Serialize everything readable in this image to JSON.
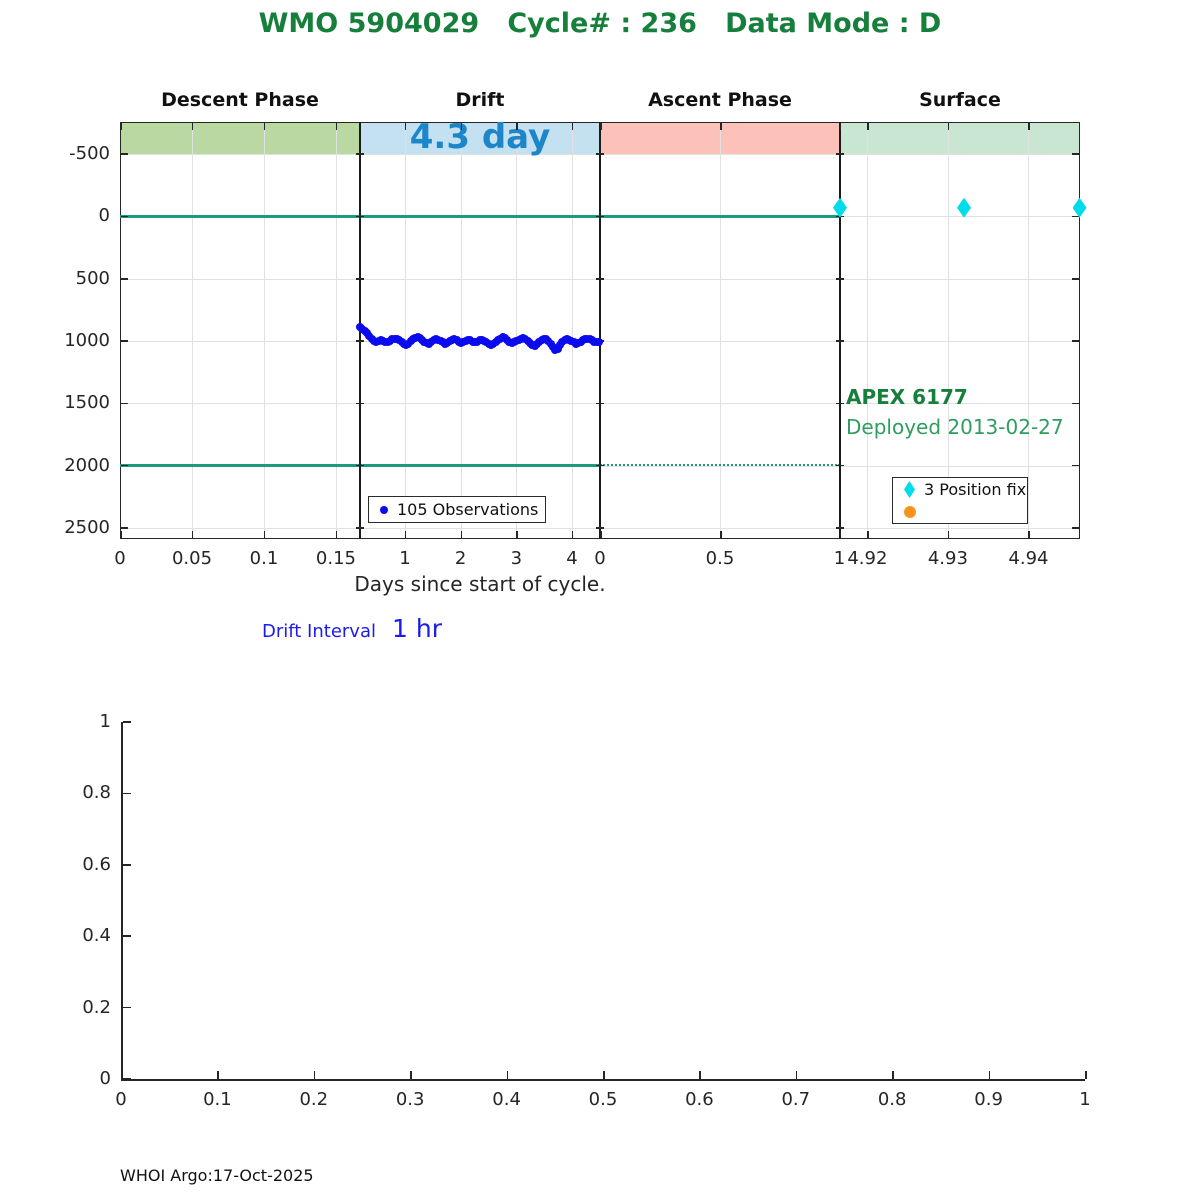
{
  "page": {
    "footer": "WHOI Argo:17-Oct-2025"
  },
  "colors": {
    "title_green": "#157f3b",
    "deployed_green": "#2e9e5f",
    "line_green": "#1e9b7d",
    "observation_blue": "#0b0bee",
    "position_fix_cyan": "#00dcea",
    "legend_orange": "#f79420",
    "drift_duration_blue": "#1d86c8",
    "interval_blue": "#1b1bee",
    "band_descent": "#b9d8a2",
    "band_drift": "#c3e1f0",
    "band_ascent": "#fcc1b8",
    "band_surface": "#c9e6d2"
  },
  "chart_data": [
    {
      "type": "scatter",
      "title": "WMO 5904029   Cycle# : 236   Data Mode : D",
      "xlabel": "Days since start of cycle.",
      "ydir": "reverse",
      "ylim": [
        -758,
        2588
      ],
      "yticks": [
        -500,
        0,
        500,
        1000,
        1500,
        2000,
        2500
      ],
      "grid": true,
      "segments": [
        {
          "name": "Descent Phase",
          "band_color": "#b9d8a2",
          "day_range": [
            0,
            0.1667
          ],
          "ticks": [
            {
              "label": "0",
              "day": 0
            },
            {
              "label": "0.05",
              "day": 0.05
            },
            {
              "label": "0.1",
              "day": 0.1
            },
            {
              "label": "0.15",
              "day": 0.15
            }
          ]
        },
        {
          "name": "Drift",
          "band_color": "#c3e1f0",
          "band_label": "4.3 day",
          "day_range": [
            0.1915,
            4.504
          ],
          "ticks": [
            {
              "label": "1",
              "day": 1
            },
            {
              "label": "2",
              "day": 2
            },
            {
              "label": "3",
              "day": 3
            },
            {
              "label": "4",
              "day": 4
            }
          ]
        },
        {
          "name": "Ascent Phase",
          "band_color": "#fcc1b8",
          "day_range": [
            0,
            1
          ],
          "ticks": [
            {
              "label": "0",
              "day": 0
            },
            {
              "label": "0.5",
              "day": 0.5
            },
            {
              "label": "1",
              "day": 1
            }
          ]
        },
        {
          "name": "Surface",
          "band_color": "#c9e6d2",
          "day_range": [
            4.9166,
            4.9464
          ],
          "ticks": [
            {
              "label": "4.92",
              "day": 4.92
            },
            {
              "label": "4.93",
              "day": 4.93
            },
            {
              "label": "4.94",
              "day": 4.94
            }
          ]
        }
      ],
      "hlines": [
        {
          "depth": 0,
          "frac": [
            0,
            0.75
          ],
          "style": "solid"
        },
        {
          "depth": 2000,
          "frac": [
            0,
            0.5
          ],
          "style": "solid"
        },
        {
          "depth": 2000,
          "frac": [
            0.5,
            0.75
          ],
          "style": "dotted"
        }
      ],
      "series": [
        {
          "name": "105 Observations",
          "marker": "point",
          "color": "#0b0bee",
          "segment": 1,
          "x_start": 0.195,
          "x_step": 0.04125,
          "depths": [
            890,
            900,
            915,
            935,
            960,
            985,
            1000,
            1005,
            1000,
            995,
            1000,
            1005,
            1010,
            1000,
            985,
            980,
            985,
            995,
            1010,
            1025,
            1030,
            1020,
            1000,
            985,
            975,
            970,
            975,
            990,
            1005,
            1015,
            1020,
            1010,
            995,
            985,
            990,
            1000,
            1010,
            1020,
            1015,
            1000,
            990,
            985,
            995,
            1005,
            1015,
            1010,
            1000,
            990,
            995,
            1005,
            1010,
            1005,
            995,
            990,
            1000,
            1010,
            1020,
            1035,
            1025,
            1010,
            995,
            980,
            970,
            975,
            990,
            1005,
            1015,
            1010,
            1000,
            990,
            980,
            975,
            985,
            1000,
            1015,
            1030,
            1040,
            1025,
            1005,
            990,
            980,
            985,
            1000,
            1020,
            1045,
            1075,
            1060,
            1035,
            1010,
            995,
            985,
            990,
            1000,
            1010,
            1020,
            1015,
            1005,
            995,
            985,
            980,
            985,
            995,
            1005,
            1010,
            1005
          ]
        },
        {
          "name": "3 Position fix",
          "marker": "diamond",
          "color": "#00dcea",
          "segment": 3,
          "points": [
            {
              "day": 4.9166,
              "depth": -70
            },
            {
              "day": 4.932,
              "depth": -70
            },
            {
              "day": 4.9464,
              "depth": -70
            }
          ]
        }
      ],
      "annotations": {
        "float_id": "APEX 6177",
        "deployed": "Deployed 2013-02-27"
      },
      "legends": {
        "observations": {
          "label": "105 Observations"
        },
        "position_fix": {
          "items": [
            {
              "label": "3 Position fix",
              "marker": "diamond",
              "color": "#00dcea"
            },
            {
              "label": "",
              "marker": "circle",
              "color": "#f79420"
            }
          ]
        }
      },
      "drift_interval": {
        "label": "Drift Interval",
        "value": "1 hr"
      }
    },
    {
      "type": "empty",
      "xlim": [
        0,
        1
      ],
      "ylim": [
        0,
        1
      ],
      "xtick_labels": [
        "0",
        "0.1",
        "0.2",
        "0.3",
        "0.4",
        "0.5",
        "0.6",
        "0.7",
        "0.8",
        "0.9",
        "1"
      ],
      "ytick_labels": [
        "0",
        "0.2",
        "0.4",
        "0.6",
        "0.8",
        "1"
      ]
    }
  ]
}
